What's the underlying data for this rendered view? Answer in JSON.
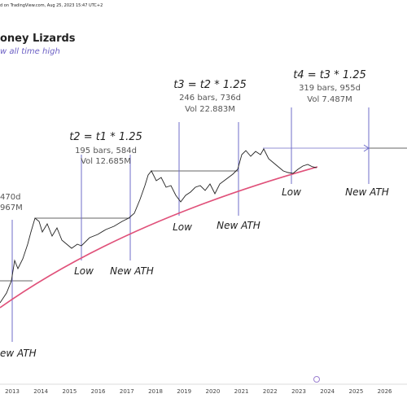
{
  "header": {
    "caption": "d on TradingView.com, Aug 25, 2023 15:47 UTC+2",
    "title": "oney  Lizards",
    "subtitle": "w all time high"
  },
  "cycles": [
    {
      "formula": null,
      "bars": "470d",
      "volume": "967M"
    },
    {
      "formula": "t2 = t1 * 1.25",
      "bars": "195 bars, 584d",
      "volume": "Vol 12.685M"
    },
    {
      "formula": "t3 = t2 * 1.25",
      "bars": "246 bars, 736d",
      "volume": "Vol 22.883M"
    },
    {
      "formula": "t4 = t3 * 1.25",
      "bars": "319 bars, 955d",
      "volume": "Vol 7.487M"
    }
  ],
  "markers": [
    "ew ATH",
    "Low",
    "New ATH",
    "Low",
    "New ATH",
    "Low",
    "New ATH"
  ],
  "x_axis": {
    "ticks": [
      "2013",
      "2014",
      "2015",
      "2016",
      "2017",
      "2018",
      "2019",
      "2020",
      "2021",
      "2022",
      "2023",
      "2024",
      "2025",
      "2026"
    ]
  }
}
